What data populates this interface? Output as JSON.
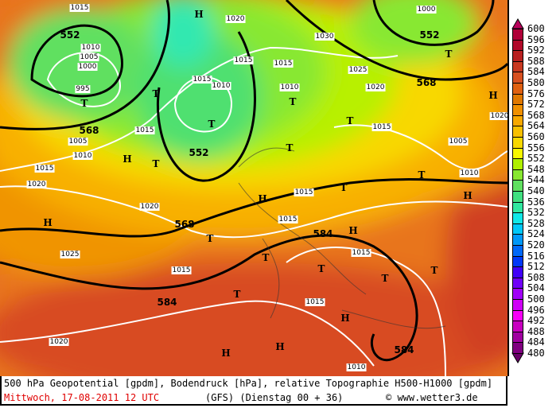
{
  "caption": {
    "line1": "500 hPa Geopotential [gpdm], Bodendruck [hPa], relative Topographie H500-H1000 [gpdm]",
    "date": "Mittwoch, 17-08-2011  12 UTC",
    "model": "(GFS)  (Dienstag 00 + 36)",
    "copyright": "© www.wetter3.de"
  },
  "legend": {
    "ticks": [
      "600",
      "596",
      "592",
      "588",
      "584",
      "580",
      "576",
      "572",
      "568",
      "564",
      "560",
      "556",
      "552",
      "548",
      "544",
      "540",
      "536",
      "532",
      "528",
      "524",
      "520",
      "516",
      "512",
      "508",
      "504",
      "500",
      "496",
      "492",
      "488",
      "484",
      "480"
    ],
    "colors": [
      "#b00038",
      "#b00828",
      "#b82020",
      "#c83820",
      "#d85020",
      "#e06010",
      "#e07800",
      "#f09000",
      "#f8a800",
      "#f8c000",
      "#f8d800",
      "#f8f800",
      "#b0f000",
      "#88e830",
      "#60e060",
      "#40e080",
      "#30e8a0",
      "#10e8e8",
      "#00c8f8",
      "#0098f8",
      "#0068f8",
      "#0038f8",
      "#4000f8",
      "#7000f8",
      "#a000f8",
      "#d000f8",
      "#f800f8",
      "#c800c0",
      "#a000a0",
      "#800080"
    ],
    "arrow_top_color": "#b8005a",
    "arrow_bottom_color": "#680068"
  },
  "map": {
    "isobar_labels": [
      "1015",
      "1010",
      "1005",
      "1000",
      "995",
      "1005",
      "1010",
      "1015",
      "1020",
      "1025",
      "1015",
      "1015",
      "1010",
      "1020",
      "1020",
      "1015",
      "1030",
      "1015",
      "1010",
      "1015",
      "1015",
      "1025",
      "1020",
      "1015",
      "1000",
      "1005",
      "1010",
      "1020",
      "1015",
      "1015",
      "1015",
      "1020",
      "1010"
    ],
    "geopotential_labels": [
      "552",
      "568",
      "552",
      "568",
      "552",
      "568",
      "584",
      "584",
      "584"
    ],
    "pressure_centers": [
      "T",
      "T",
      "T",
      "T",
      "T",
      "T",
      "H",
      "H",
      "T",
      "T",
      "T",
      "T",
      "T",
      "H",
      "H",
      "H",
      "H",
      "T",
      "T",
      "T",
      "T",
      "T",
      "H",
      "H",
      "H",
      "H"
    ]
  }
}
